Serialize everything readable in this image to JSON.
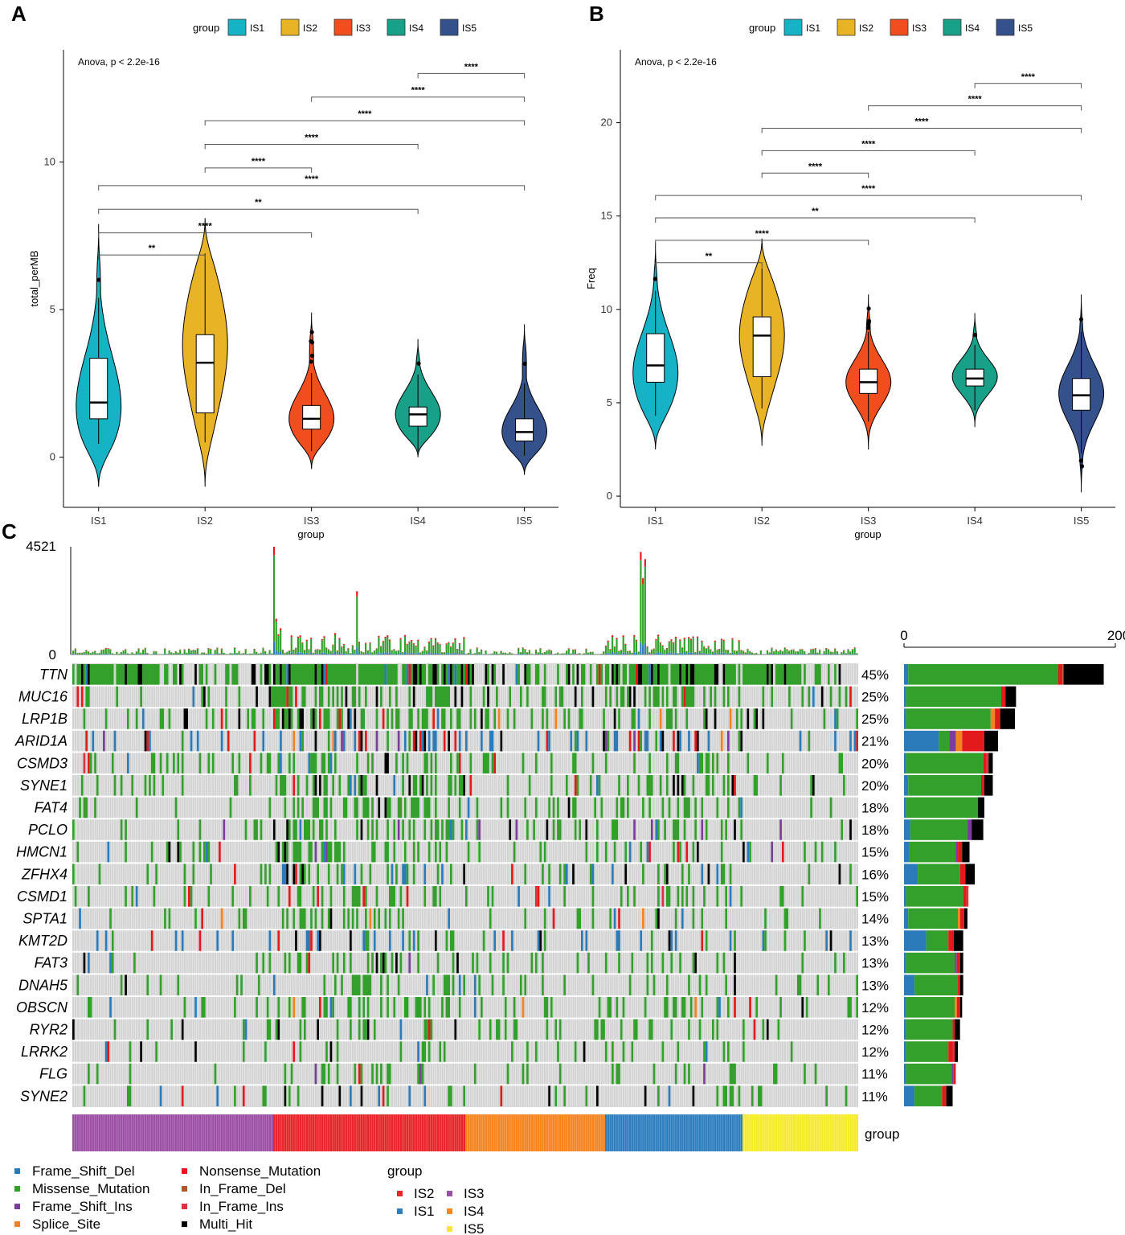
{
  "colors": {
    "IS1": "#16b3c6",
    "IS2": "#e8b425",
    "IS3": "#f04e1e",
    "IS4": "#18a088",
    "IS5": "#34518c",
    "Frame_Shift_Del": "#2b7bba",
    "Missense_Mutation": "#33a02c",
    "Frame_Shift_Ins": "#7a3d9a",
    "Splice_Site": "#f48220",
    "Nonsense_Mutation": "#e31a1c",
    "In_Frame_Del": "#b15928",
    "In_Frame_Ins": "#e0303f",
    "Multi_Hit": "#000000",
    "background": "#d3d3d3",
    "grp_IS2": "#e8252a",
    "grp_IS1": "#2f7ec0",
    "grp_IS3": "#9d4fa5",
    "grp_IS4": "#f6841f",
    "grp_IS5": "#f5eb2c"
  },
  "chart_data": [
    {
      "panel": "A",
      "type": "violin",
      "legend_title": "group",
      "legend": [
        "IS1",
        "IS2",
        "IS3",
        "IS4",
        "IS5"
      ],
      "xlabel": "group",
      "ylabel": "total_perMB",
      "categories": [
        "IS1",
        "IS2",
        "IS3",
        "IS4",
        "IS5"
      ],
      "yticks": [
        0,
        5,
        10
      ],
      "ylim": [
        -1.7,
        13.8
      ],
      "anova": "Anova, p < 2.2e-16",
      "stats": [
        {
          "min": -1.0,
          "max": 7.9,
          "q1": 1.3,
          "median": 1.85,
          "q3": 3.35,
          "wlo": 0.45,
          "whi": 5.4,
          "mode": 1.7
        },
        {
          "min": -1.0,
          "max": 8.1,
          "q1": 1.5,
          "median": 3.2,
          "q3": 4.15,
          "wlo": 0.5,
          "whi": 6.9,
          "mode": 3.8
        },
        {
          "min": -0.4,
          "max": 4.9,
          "q1": 0.95,
          "median": 1.3,
          "q3": 1.75,
          "wlo": 0.2,
          "whi": 2.85,
          "mode": 1.3
        },
        {
          "min": 0.0,
          "max": 4.0,
          "q1": 1.05,
          "median": 1.45,
          "q3": 1.7,
          "wlo": 0.2,
          "whi": 2.8,
          "mode": 1.45
        },
        {
          "min": -0.6,
          "max": 4.5,
          "q1": 0.55,
          "median": 0.85,
          "q3": 1.3,
          "wlo": 0.05,
          "whi": 2.5,
          "mode": 0.85
        }
      ],
      "comparisons": [
        {
          "from": 0,
          "to": 1,
          "y": 6.85,
          "label": "**"
        },
        {
          "from": 0,
          "to": 2,
          "y": 7.6,
          "label": "****"
        },
        {
          "from": 0,
          "to": 3,
          "y": 8.4,
          "label": "**"
        },
        {
          "from": 0,
          "to": 4,
          "y": 9.2,
          "label": "****"
        },
        {
          "from": 1,
          "to": 2,
          "y": 9.8,
          "label": "****"
        },
        {
          "from": 1,
          "to": 3,
          "y": 10.6,
          "label": "****"
        },
        {
          "from": 1,
          "to": 4,
          "y": 11.4,
          "label": "****"
        },
        {
          "from": 2,
          "to": 4,
          "y": 12.2,
          "label": "****"
        },
        {
          "from": 3,
          "to": 4,
          "y": 13.0,
          "label": "****"
        }
      ]
    },
    {
      "panel": "B",
      "type": "violin",
      "legend_title": "group",
      "legend": [
        "IS1",
        "IS2",
        "IS3",
        "IS4",
        "IS5"
      ],
      "xlabel": "group",
      "ylabel": "Freq",
      "categories": [
        "IS1",
        "IS2",
        "IS3",
        "IS4",
        "IS5"
      ],
      "yticks": [
        0,
        5,
        10,
        15,
        20
      ],
      "ylim": [
        -0.6,
        23.9
      ],
      "anova": "Anova, p < 2.2e-16",
      "stats": [
        {
          "min": 2.5,
          "max": 13.6,
          "q1": 6.1,
          "median": 7.0,
          "q3": 8.7,
          "wlo": 4.3,
          "whi": 11.0,
          "mode": 6.6
        },
        {
          "min": 2.7,
          "max": 13.8,
          "q1": 6.4,
          "median": 8.6,
          "q3": 9.6,
          "wlo": 4.7,
          "whi": 12.2,
          "mode": 8.6
        },
        {
          "min": 2.5,
          "max": 10.8,
          "q1": 5.5,
          "median": 6.1,
          "q3": 6.8,
          "wlo": 4.0,
          "whi": 8.8,
          "mode": 6.1
        },
        {
          "min": 3.7,
          "max": 9.8,
          "q1": 5.9,
          "median": 6.3,
          "q3": 6.8,
          "wlo": 4.6,
          "whi": 8.1,
          "mode": 6.4
        },
        {
          "min": 0.2,
          "max": 10.8,
          "q1": 4.6,
          "median": 5.4,
          "q3": 6.3,
          "wlo": 2.3,
          "whi": 8.8,
          "mode": 5.5
        }
      ],
      "comparisons": [
        {
          "from": 0,
          "to": 1,
          "y": 12.5,
          "label": "**"
        },
        {
          "from": 0,
          "to": 2,
          "y": 13.7,
          "label": "****"
        },
        {
          "from": 0,
          "to": 3,
          "y": 14.9,
          "label": "**"
        },
        {
          "from": 0,
          "to": 4,
          "y": 16.1,
          "label": "****"
        },
        {
          "from": 1,
          "to": 2,
          "y": 17.3,
          "label": "****"
        },
        {
          "from": 1,
          "to": 3,
          "y": 18.5,
          "label": "****"
        },
        {
          "from": 1,
          "to": 4,
          "y": 19.7,
          "label": "****"
        },
        {
          "from": 2,
          "to": 4,
          "y": 20.9,
          "label": "****"
        },
        {
          "from": 3,
          "to": 4,
          "y": 22.1,
          "label": "****"
        }
      ]
    },
    {
      "panel": "C",
      "type": "heatmap",
      "subtype": "oncoplot",
      "tmb_axis": {
        "max": 4521,
        "min": 0
      },
      "side_axis": {
        "min": 0,
        "max": 200
      },
      "genes": [
        "TTN",
        "MUC16",
        "LRP1B",
        "ARID1A",
        "CSMD3",
        "SYNE1",
        "FAT4",
        "PCLO",
        "HMCN1",
        "ZFHX4",
        "CSMD1",
        "SPTA1",
        "KMT2D",
        "FAT3",
        "DNAH5",
        "OBSCN",
        "RYR2",
        "LRRK2",
        "FLG",
        "SYNE2"
      ],
      "percentages": [
        "45%",
        "25%",
        "25%",
        "21%",
        "20%",
        "20%",
        "18%",
        "18%",
        "15%",
        "16%",
        "15%",
        "14%",
        "13%",
        "13%",
        "13%",
        "12%",
        "12%",
        "12%",
        "11%",
        "11%"
      ],
      "side_bars": [
        {
          "FSD": 4,
          "MIS": 142,
          "FSI": 0,
          "SPL": 0,
          "NON": 4,
          "IFD": 1,
          "IFI": 0,
          "MH": 38
        },
        {
          "FSD": 2,
          "MIS": 90,
          "FSI": 0,
          "SPL": 0,
          "NON": 4,
          "IFD": 0,
          "IFI": 0,
          "MH": 10
        },
        {
          "FSD": 2,
          "MIS": 80,
          "FSI": 0,
          "SPL": 4,
          "NON": 5,
          "IFD": 0,
          "IFI": 0,
          "MH": 14
        },
        {
          "FSD": 33,
          "MIS": 10,
          "FSI": 6,
          "SPL": 6,
          "NON": 21,
          "IFD": 0,
          "IFI": 0,
          "MH": 13
        },
        {
          "FSD": 2,
          "MIS": 73,
          "FSI": 0,
          "SPL": 0,
          "NON": 3,
          "IFD": 0,
          "IFI": 2,
          "MH": 4
        },
        {
          "FSD": 4,
          "MIS": 69,
          "FSI": 0,
          "SPL": 0,
          "NON": 3,
          "IFD": 0,
          "IFI": 0,
          "MH": 8
        },
        {
          "FSD": 2,
          "MIS": 68,
          "FSI": 0,
          "SPL": 0,
          "NON": 0,
          "IFD": 0,
          "IFI": 0,
          "MH": 6
        },
        {
          "FSD": 6,
          "MIS": 54,
          "FSI": 4,
          "SPL": 0,
          "NON": 0,
          "IFD": 0,
          "IFI": 0,
          "MH": 11
        },
        {
          "FSD": 5,
          "MIS": 44,
          "FSI": 2,
          "SPL": 0,
          "NON": 4,
          "IFD": 0,
          "IFI": 0,
          "MH": 7
        },
        {
          "FSD": 13,
          "MIS": 40,
          "FSI": 0,
          "SPL": 0,
          "NON": 5,
          "IFD": 0,
          "IFI": 0,
          "MH": 9
        },
        {
          "FSD": 2,
          "MIS": 54,
          "FSI": 0,
          "SPL": 0,
          "NON": 3,
          "IFD": 0,
          "IFI": 2,
          "MH": 0
        },
        {
          "FSD": 4,
          "MIS": 47,
          "FSI": 0,
          "SPL": 2,
          "NON": 4,
          "IFD": 0,
          "IFI": 0,
          "MH": 3
        },
        {
          "FSD": 21,
          "MIS": 21,
          "FSI": 0,
          "SPL": 0,
          "NON": 5,
          "IFD": 0,
          "IFI": 0,
          "MH": 9
        },
        {
          "FSD": 2,
          "MIS": 46,
          "FSI": 2,
          "SPL": 0,
          "NON": 3,
          "IFD": 0,
          "IFI": 0,
          "MH": 3
        },
        {
          "FSD": 10,
          "MIS": 41,
          "FSI": 0,
          "SPL": 0,
          "NON": 2,
          "IFD": 0,
          "IFI": 0,
          "MH": 3
        },
        {
          "FSD": 2,
          "MIS": 46,
          "FSI": 0,
          "SPL": 2,
          "NON": 3,
          "IFD": 0,
          "IFI": 0,
          "MH": 2
        },
        {
          "FSD": 2,
          "MIS": 44,
          "FSI": 0,
          "SPL": 0,
          "NON": 2,
          "IFD": 0,
          "IFI": 0,
          "MH": 5
        },
        {
          "FSD": 2,
          "MIS": 40,
          "FSI": 0,
          "SPL": 0,
          "NON": 4,
          "IFD": 0,
          "IFI": 2,
          "MH": 3
        },
        {
          "FSD": 2,
          "MIS": 43,
          "FSI": 2,
          "SPL": 0,
          "NON": 2,
          "IFD": 0,
          "IFI": 0,
          "MH": 0
        },
        {
          "FSD": 10,
          "MIS": 26,
          "FSI": 0,
          "SPL": 0,
          "NON": 4,
          "IFD": 0,
          "IFI": 0,
          "MH": 6
        }
      ],
      "group_order": [
        "IS3",
        "IS2",
        "IS4",
        "IS1",
        "IS5"
      ],
      "group_sample_counts": [
        92,
        88,
        64,
        63,
        53
      ],
      "group_row_label": "group",
      "legend_variants": [
        "Frame_Shift_Del",
        "Missense_Mutation",
        "Frame_Shift_Ins",
        "Splice_Site",
        "Nonsense_Mutation",
        "In_Frame_Del",
        "In_Frame_Ins",
        "Multi_Hit"
      ],
      "legend_group_title": "group",
      "legend_groups": [
        "IS2",
        "IS3",
        "IS1",
        "IS4",
        "IS5"
      ]
    }
  ]
}
